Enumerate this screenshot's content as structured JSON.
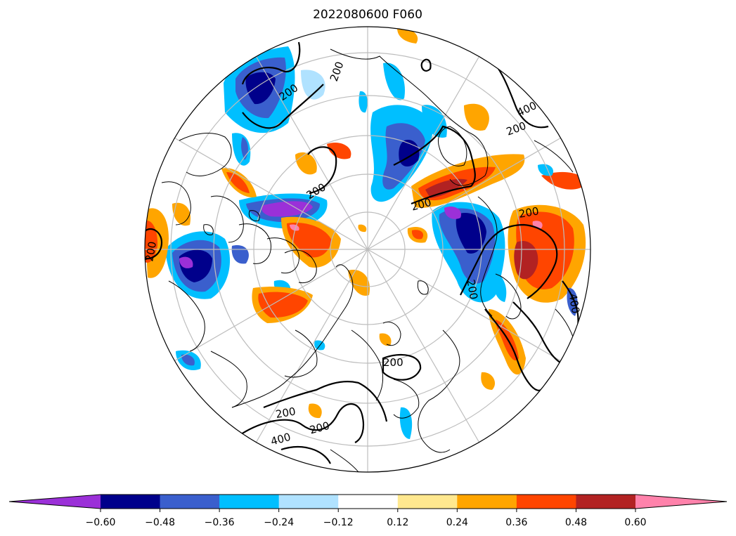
{
  "title": "2022080600 F060",
  "map": {
    "projection": "north-polar-stereographic",
    "grid": true,
    "coastlines": true,
    "contour_labels": [
      "200",
      "200",
      "400",
      "200",
      "200",
      "200",
      "200",
      "200",
      "200",
      "400",
      "400",
      "200",
      "200",
      "200"
    ],
    "colors": {
      "coast": "#000000",
      "grid": "#bdbdbd",
      "contour": "#000000"
    }
  },
  "colorbar": {
    "extend": "both",
    "tick_labels": [
      "−0.60",
      "−0.48",
      "−0.36",
      "−0.24",
      "−0.12",
      "0.12",
      "0.24",
      "0.36",
      "0.48",
      "0.60"
    ],
    "ticks": [
      -0.6,
      -0.48,
      -0.36,
      -0.24,
      -0.12,
      0.12,
      0.24,
      0.36,
      0.48,
      0.6
    ],
    "colors": [
      "#9b30d8",
      "#00008b",
      "#3a5fcd",
      "#00bfff",
      "#b0e2ff",
      "#ffffff",
      "#ffe88f",
      "#ffa500",
      "#ff4500",
      "#b22222",
      "#ff82ab"
    ]
  },
  "chart_data": {
    "type": "heatmap",
    "title": "2022080600 F060",
    "levels": [
      -0.6,
      -0.48,
      -0.36,
      -0.24,
      -0.12,
      0.12,
      0.24,
      0.36,
      0.48,
      0.6
    ],
    "extend": "both",
    "contour_values": [
      200,
      400
    ]
  }
}
